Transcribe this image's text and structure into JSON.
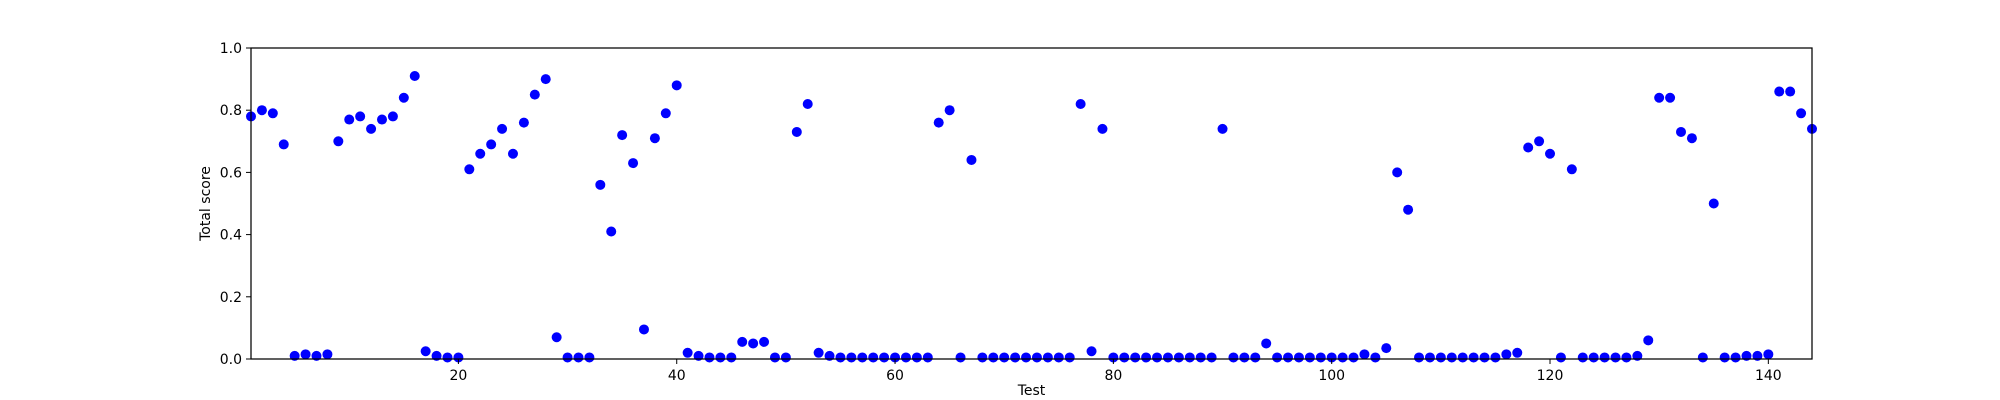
{
  "chart_data": {
    "type": "scatter",
    "title": "",
    "xlabel": "Test",
    "ylabel": "Total score",
    "xlim": [
      1,
      144
    ],
    "ylim": [
      0.0,
      1.0
    ],
    "x_ticks": [
      20,
      40,
      60,
      80,
      100,
      120,
      140
    ],
    "y_ticks": [
      0.0,
      0.2,
      0.4,
      0.6,
      0.8,
      1.0
    ],
    "x_tick_labels": [
      "20",
      "40",
      "60",
      "80",
      "100",
      "120",
      "140"
    ],
    "y_tick_labels": [
      "0.0",
      "0.2",
      "0.4",
      "0.6",
      "0.8",
      "1.0"
    ],
    "grid": false,
    "marker_color": "#0000ff",
    "series": [
      {
        "x": [
          1,
          2,
          3,
          4,
          5,
          6,
          7,
          8,
          9,
          10,
          11,
          12,
          13,
          14,
          15,
          16,
          17,
          18,
          19,
          20,
          21,
          22,
          23,
          24,
          25,
          26,
          27,
          28,
          29,
          30,
          31,
          32,
          33,
          34,
          35,
          36,
          37,
          38,
          39,
          40,
          41,
          42,
          43,
          44,
          45,
          46,
          47,
          48,
          49,
          50,
          51,
          52,
          53,
          54,
          55,
          56,
          57,
          58,
          59,
          60,
          61,
          62,
          63,
          64,
          65,
          66,
          67,
          68,
          69,
          70,
          71,
          72,
          73,
          74,
          75,
          76,
          77,
          78,
          79,
          80,
          81,
          82,
          83,
          84,
          85,
          86,
          87,
          88,
          89,
          90,
          91,
          92,
          93,
          94,
          95,
          96,
          97,
          98,
          99,
          100,
          101,
          102,
          103,
          104,
          105,
          106,
          107,
          108,
          109,
          110,
          111,
          112,
          113,
          114,
          115,
          116,
          117,
          118,
          119,
          120,
          121,
          122,
          123,
          124,
          125,
          126,
          127,
          128,
          129,
          130,
          131,
          132,
          133,
          134,
          135,
          136,
          137,
          138,
          139,
          140,
          141,
          142,
          143,
          144
        ],
        "y": [
          0.78,
          0.8,
          0.79,
          0.69,
          0.01,
          0.015,
          0.01,
          0.015,
          0.7,
          0.77,
          0.78,
          0.74,
          0.77,
          0.78,
          0.84,
          0.91,
          0.025,
          0.01,
          0.005,
          0.005,
          0.61,
          0.66,
          0.69,
          0.74,
          0.66,
          0.76,
          0.85,
          0.9,
          0.07,
          0.005,
          0.005,
          0.005,
          0.56,
          0.41,
          0.72,
          0.63,
          0.095,
          0.71,
          0.79,
          0.88,
          0.02,
          0.01,
          0.005,
          0.005,
          0.005,
          0.055,
          0.05,
          0.055,
          0.005,
          0.005,
          0.73,
          0.82,
          0.02,
          0.01,
          0.005,
          0.005,
          0.005,
          0.005,
          0.005,
          0.005,
          0.005,
          0.005,
          0.005,
          0.76,
          0.8,
          0.005,
          0.64,
          0.005,
          0.005,
          0.005,
          0.005,
          0.005,
          0.005,
          0.005,
          0.005,
          0.005,
          0.82,
          0.025,
          0.74,
          0.005,
          0.005,
          0.005,
          0.005,
          0.005,
          0.005,
          0.005,
          0.005,
          0.005,
          0.005,
          0.74,
          0.005,
          0.005,
          0.005,
          0.05,
          0.005,
          0.005,
          0.005,
          0.005,
          0.005,
          0.005,
          0.005,
          0.005,
          0.015,
          0.005,
          0.035,
          0.6,
          0.48,
          0.005,
          0.005,
          0.005,
          0.005,
          0.005,
          0.005,
          0.005,
          0.005,
          0.015,
          0.02,
          0.68,
          0.7,
          0.66,
          0.005,
          0.61,
          0.005,
          0.005,
          0.005,
          0.005,
          0.005,
          0.01,
          0.06,
          0.84,
          0.84,
          0.73,
          0.71,
          0.005,
          0.5,
          0.005,
          0.005,
          0.01,
          0.01,
          0.015,
          0.86,
          0.86,
          0.79,
          0.74
        ]
      }
    ]
  }
}
